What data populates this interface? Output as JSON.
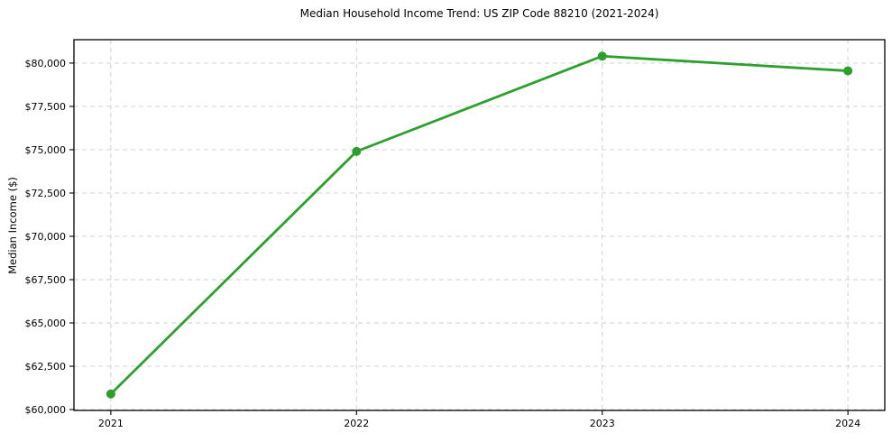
{
  "figure": {
    "title": "Median Household Income Trend: US ZIP Code 88210 (2021-2024)"
  },
  "chart_data": {
    "type": "line",
    "title": "Median Household Income Trend: US ZIP Code 88210 (2021-2024)",
    "xlabel": "",
    "ylabel": "Median Income ($)",
    "x": [
      2021,
      2022,
      2023,
      2024
    ],
    "x_tick_labels": [
      "2021",
      "2022",
      "2023",
      "2024"
    ],
    "series": [
      {
        "name": "Median Household Income",
        "values": [
          60900,
          74900,
          80400,
          79550
        ],
        "color": "#2ca02c",
        "marker": "circle"
      }
    ],
    "y_ticks": [
      60000,
      62500,
      65000,
      67500,
      70000,
      72500,
      75000,
      77500,
      80000
    ],
    "y_tick_labels": [
      "$60,000",
      "$62,500",
      "$65,000",
      "$67,500",
      "$70,000",
      "$72,500",
      "$75,000",
      "$77,500",
      "$80,000"
    ],
    "xlim": [
      2020.85,
      2024.15
    ],
    "ylim": [
      59950,
      81350
    ],
    "grid": true,
    "grid_style": "dashed",
    "legend": "none",
    "colors": {
      "line": "#2ca02c",
      "grid": "#cdcdcd",
      "axis": "#000000",
      "background": "#ffffff"
    }
  }
}
